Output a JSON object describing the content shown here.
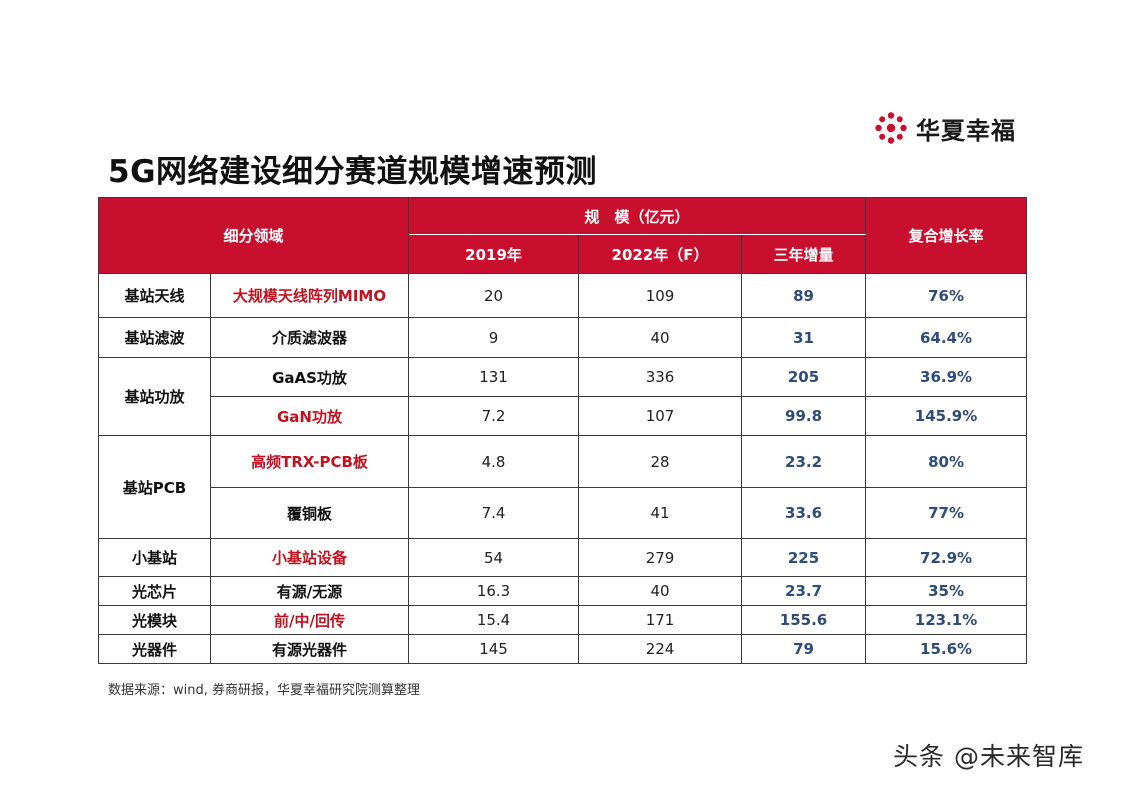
{
  "brand": {
    "name": "华夏幸福",
    "logo_color": "#c8102e"
  },
  "title": "5G网络建设细分赛道规模增速预测",
  "table": {
    "headers": {
      "segment": "细分领域",
      "scale_group": "规　模（亿元）",
      "y2019": "2019年",
      "y2022": "2022年（F）",
      "increase": "三年增量",
      "cagr": "复合增长率"
    },
    "categories": {
      "antenna": "基站天线",
      "filter": "基站滤波",
      "power": "基站功放",
      "pcb": "基站PCB",
      "small": "小基站",
      "chip": "光芯片",
      "module": "光模块",
      "device": "光器件"
    },
    "rows": [
      {
        "sub": "大规模天线阵列MIMO",
        "highlight": true,
        "y2019": "20",
        "y2022": "109",
        "increase": "89",
        "cagr": "76%"
      },
      {
        "sub": "介质滤波器",
        "highlight": false,
        "y2019": "9",
        "y2022": "40",
        "increase": "31",
        "cagr": "64.4%"
      },
      {
        "sub": "GaAS功放",
        "highlight": false,
        "y2019": "131",
        "y2022": "336",
        "increase": "205",
        "cagr": "36.9%"
      },
      {
        "sub": "GaN功放",
        "highlight": true,
        "y2019": "7.2",
        "y2022": "107",
        "increase": "99.8",
        "cagr": "145.9%"
      },
      {
        "sub": "高频TRX-PCB板",
        "highlight": true,
        "y2019": "4.8",
        "y2022": "28",
        "increase": "23.2",
        "cagr": "80%"
      },
      {
        "sub": "覆铜板",
        "highlight": false,
        "y2019": "7.4",
        "y2022": "41",
        "increase": "33.6",
        "cagr": "77%"
      },
      {
        "sub": "小基站设备",
        "highlight": true,
        "y2019": "54",
        "y2022": "279",
        "increase": "225",
        "cagr": "72.9%"
      },
      {
        "sub": "有源/无源",
        "highlight": false,
        "y2019": "16.3",
        "y2022": "40",
        "increase": "23.7",
        "cagr": "35%"
      },
      {
        "sub": "前/中/回传",
        "highlight": true,
        "y2019": "15.4",
        "y2022": "171",
        "increase": "155.6",
        "cagr": "123.1%"
      },
      {
        "sub": "有源光器件",
        "highlight": false,
        "y2019": "145",
        "y2022": "224",
        "increase": "79",
        "cagr": "15.6%"
      }
    ]
  },
  "source": "数据来源：wind, 券商研报，华夏幸福研究院测算整理",
  "watermark": "头条 @未来智库"
}
